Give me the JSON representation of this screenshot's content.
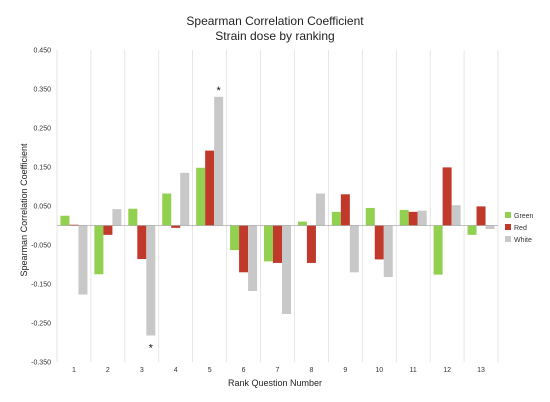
{
  "chart_data": {
    "type": "bar",
    "title": "Spearman Correlation Coefficient",
    "subtitle": "Strain dose by ranking",
    "xlabel": "Rank Question Number",
    "ylabel": "Spearman Correlation Coefficient",
    "ylim": [
      -0.35,
      0.45
    ],
    "yticks": [
      0.45,
      0.35,
      0.25,
      0.15,
      0.05,
      -0.05,
      -0.15,
      -0.25,
      -0.35
    ],
    "ytick_labels": [
      "0.450",
      "0.350",
      "0.250",
      "0.150",
      "0.050",
      "-0.050",
      "-0.150",
      "-0.250",
      "-0.350"
    ],
    "categories": [
      "1",
      "2",
      "3",
      "4",
      "5",
      "6",
      "7",
      "8",
      "9",
      "10",
      "11",
      "12",
      "13"
    ],
    "grid": "vertical",
    "legend_position": "right",
    "series": [
      {
        "name": "Green",
        "color": "#92d050",
        "values": [
          0.025,
          -0.125,
          0.043,
          0.082,
          0.148,
          -0.063,
          -0.092,
          0.01,
          0.035,
          0.045,
          0.04,
          -0.126,
          -0.024
        ]
      },
      {
        "name": "Red",
        "color": "#c0392b",
        "values": [
          0.002,
          -0.024,
          -0.086,
          -0.006,
          0.192,
          -0.12,
          -0.096,
          -0.096,
          0.08,
          -0.087,
          0.035,
          0.149,
          0.049
        ]
      },
      {
        "name": "White",
        "color": "#c8c8c8",
        "values": [
          -0.177,
          0.042,
          -0.282,
          0.135,
          0.33,
          -0.168,
          -0.227,
          0.082,
          -0.12,
          -0.132,
          0.038,
          0.052,
          -0.009
        ]
      }
    ],
    "annotations": [
      {
        "text": "*",
        "category": "5",
        "series": "White",
        "position": "above"
      },
      {
        "text": "*",
        "category": "3",
        "series": "White",
        "position": "below"
      }
    ]
  }
}
